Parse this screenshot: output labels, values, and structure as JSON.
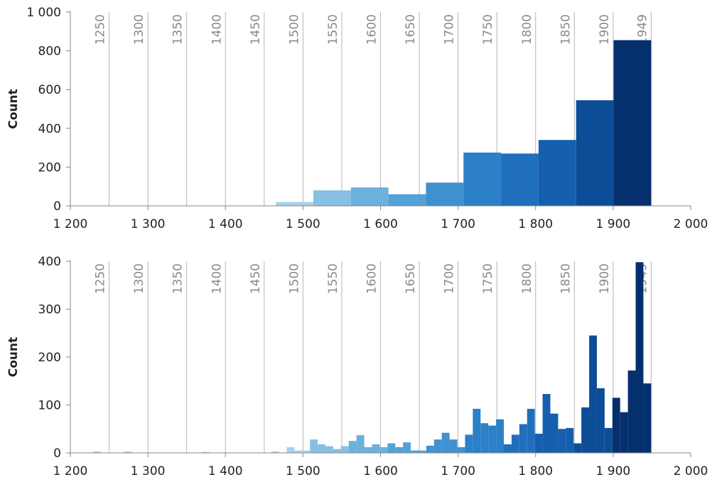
{
  "chart_data": [
    {
      "type": "histogram",
      "ylabel": "Count",
      "bins": [
        1465,
        1513.4,
        1561.8,
        1610.2,
        1658.6,
        1707,
        1755.4,
        1803.8,
        1852.2,
        1900.6,
        1949
      ],
      "values": [
        20,
        80,
        95,
        60,
        120,
        275,
        270,
        340,
        545,
        855
      ],
      "colors": [
        "#a8d1ec",
        "#86c0e3",
        "#6cb0de",
        "#53a1d7",
        "#3f91d0",
        "#2b80c8",
        "#1f6fbd",
        "#155fad",
        "#0d4d98",
        "#062f6e"
      ],
      "xlim": [
        1200,
        2000
      ],
      "xticks": [
        {
          "value": 1200,
          "label": "1 200"
        },
        {
          "value": 1300,
          "label": "1 300"
        },
        {
          "value": 1400,
          "label": "1 400"
        },
        {
          "value": 1500,
          "label": "1 500"
        },
        {
          "value": 1600,
          "label": "1 600"
        },
        {
          "value": 1700,
          "label": "1 700"
        },
        {
          "value": 1800,
          "label": "1 800"
        },
        {
          "value": 1900,
          "label": "1 900"
        },
        {
          "value": 2000,
          "label": "2 000"
        }
      ],
      "ylim": [
        0,
        1000
      ],
      "yticks": [
        0,
        200,
        400,
        600,
        800,
        {
          "value": 1000,
          "label": "1 000"
        }
      ],
      "reference_lines": [
        1250,
        1300,
        1350,
        1400,
        1450,
        1500,
        1550,
        1600,
        1650,
        1700,
        1750,
        1800,
        1850,
        1900,
        1949
      ]
    },
    {
      "type": "histogram",
      "ylabel": "Count",
      "bins": [
        1219,
        1229,
        1239,
        1249,
        1259,
        1269,
        1279,
        1289,
        1299,
        1309,
        1319,
        1329,
        1339,
        1349,
        1359,
        1369,
        1379,
        1389,
        1399,
        1409,
        1419,
        1429,
        1439,
        1449,
        1459,
        1469,
        1479,
        1489,
        1499,
        1509,
        1519,
        1529,
        1539,
        1549,
        1559,
        1569,
        1579,
        1589,
        1599,
        1609,
        1619,
        1629,
        1639,
        1649,
        1659,
        1669,
        1679,
        1689,
        1699,
        1709,
        1719,
        1729,
        1739,
        1749,
        1759,
        1769,
        1779,
        1789,
        1799,
        1809,
        1819,
        1829,
        1839,
        1849,
        1859,
        1869,
        1879,
        1889,
        1899,
        1909,
        1919,
        1929,
        1939,
        1949
      ],
      "values": [
        0,
        3,
        0,
        0,
        0,
        3,
        0,
        0,
        0,
        0,
        0,
        0,
        0,
        0,
        0,
        2,
        0,
        0,
        0,
        0,
        0,
        0,
        0,
        0,
        3,
        0,
        12,
        5,
        5,
        28,
        18,
        14,
        8,
        14,
        25,
        37,
        12,
        18,
        12,
        20,
        12,
        22,
        5,
        5,
        15,
        28,
        42,
        28,
        12,
        38,
        92,
        62,
        57,
        70,
        18,
        38,
        60,
        92,
        40,
        123,
        82,
        50,
        52,
        20,
        95,
        245,
        135,
        52,
        115,
        85,
        172,
        398,
        145
      ],
      "xlim": [
        1200,
        2000
      ],
      "xticks": [
        {
          "value": 1200,
          "label": "1 200"
        },
        {
          "value": 1300,
          "label": "1 300"
        },
        {
          "value": 1400,
          "label": "1 400"
        },
        {
          "value": 1500,
          "label": "1 500"
        },
        {
          "value": 1600,
          "label": "1 600"
        },
        {
          "value": 1700,
          "label": "1 700"
        },
        {
          "value": 1800,
          "label": "1 800"
        },
        {
          "value": 1900,
          "label": "1 900"
        },
        {
          "value": 2000,
          "label": "2 000"
        }
      ],
      "ylim": [
        0,
        400
      ],
      "yticks": [
        0,
        100,
        200,
        300,
        400
      ],
      "reference_lines": [
        1250,
        1300,
        1350,
        1400,
        1450,
        1500,
        1550,
        1600,
        1650,
        1700,
        1750,
        1800,
        1850,
        1900,
        1949
      ]
    }
  ]
}
